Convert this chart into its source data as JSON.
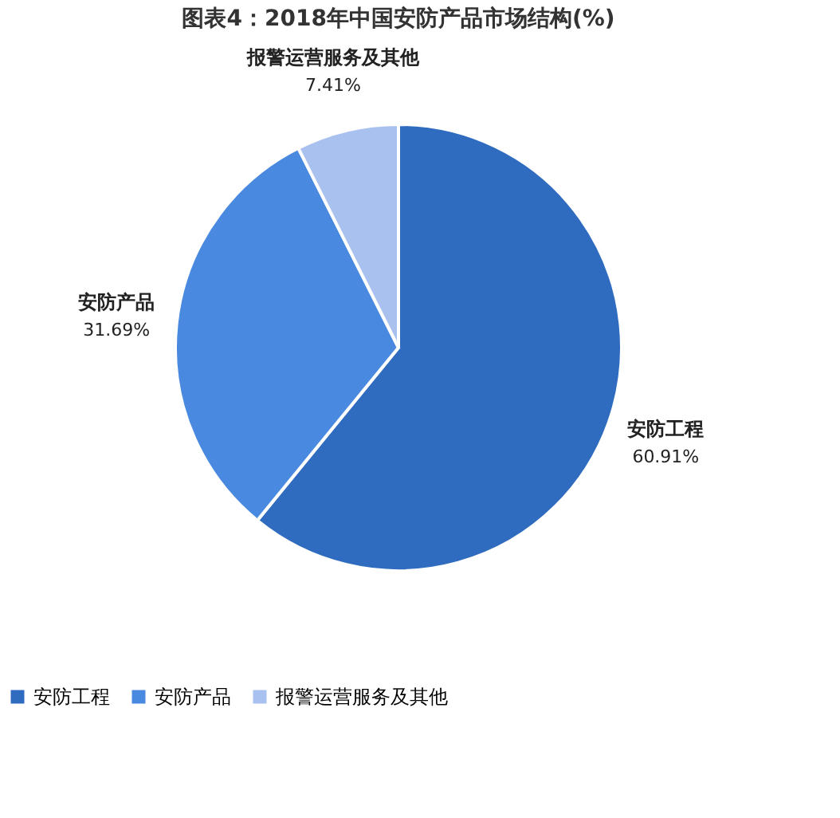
{
  "chart_data": {
    "type": "pie",
    "title": "图表4：2018年中国安防产品市场结构(%)",
    "categories": [
      "安防工程",
      "安防产品",
      "报警运营服务及其他"
    ],
    "values": [
      60.91,
      31.69,
      7.41
    ],
    "value_labels": [
      "60.91%",
      "31.69%",
      "7.41%"
    ],
    "colors": [
      "#2f6bbf",
      "#4a89e0",
      "#a9c1ee"
    ],
    "legend": "bottom"
  }
}
